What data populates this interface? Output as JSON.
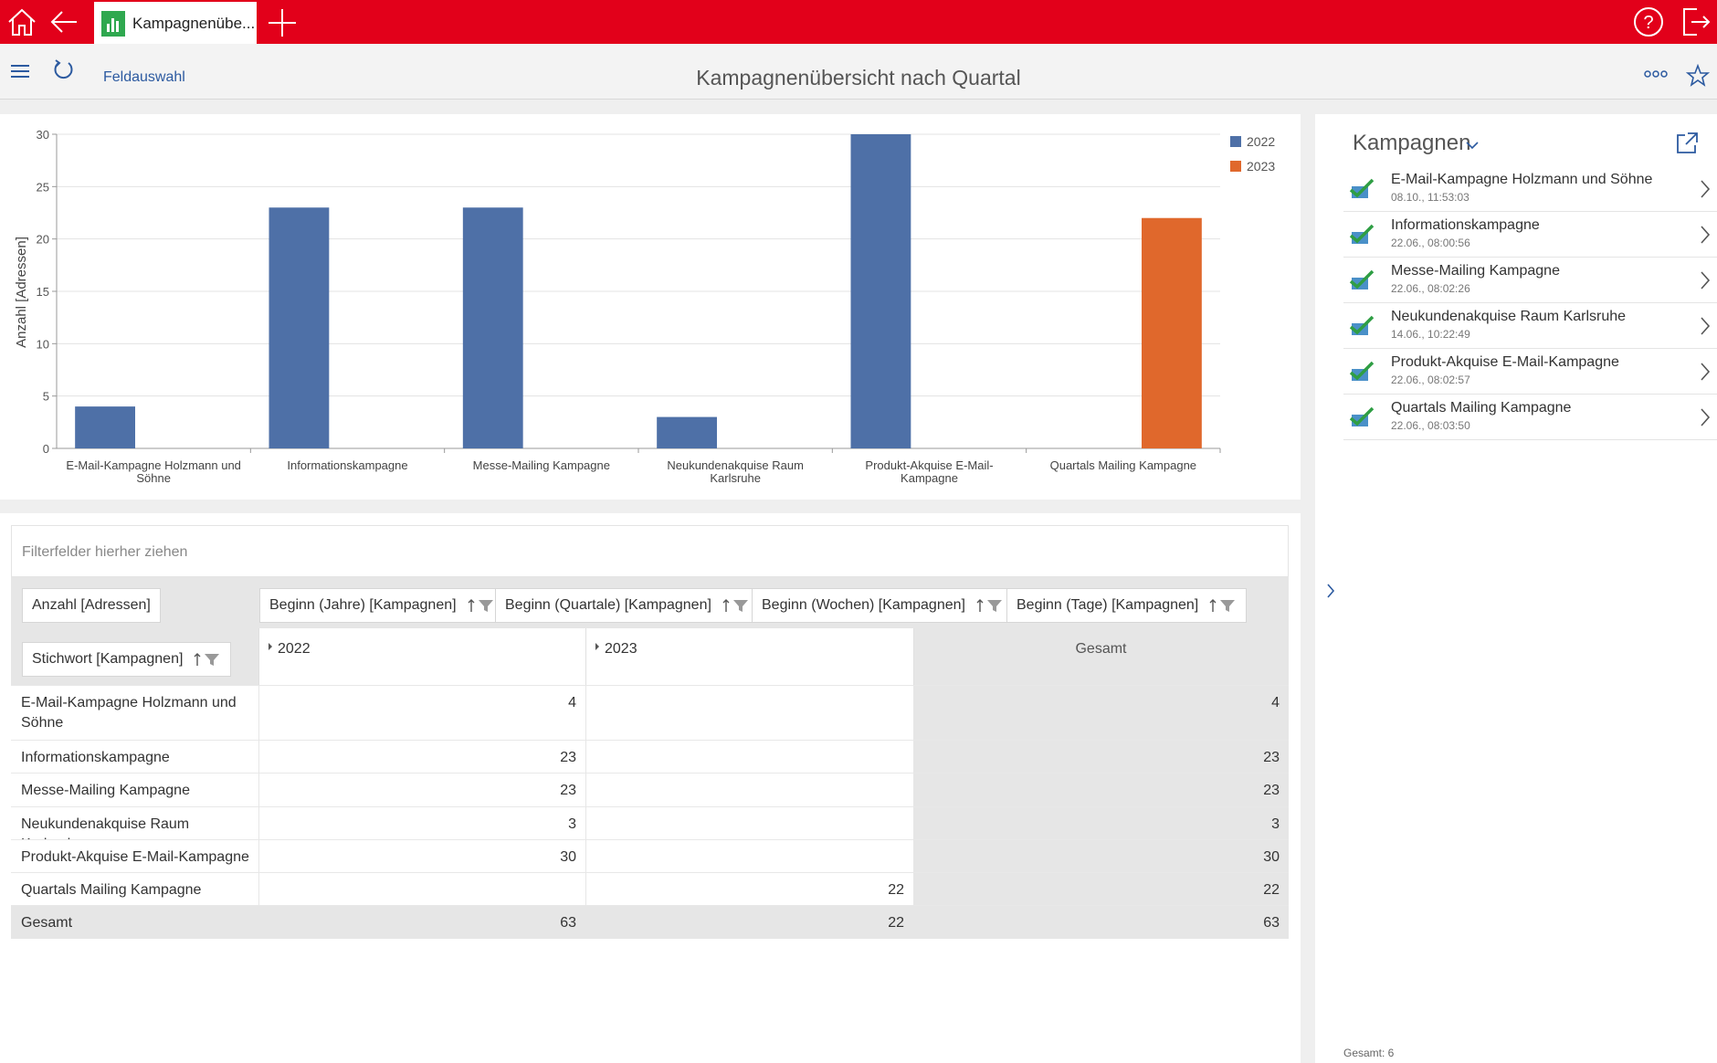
{
  "tab": {
    "title": "Kampagnenübe..."
  },
  "toolbar": {
    "field_selection": "Feldauswahl",
    "title": "Kampagnenübersicht nach Quartal"
  },
  "chart_data": {
    "type": "bar",
    "ylabel": "Anzahl [Adressen]",
    "categories": [
      "E-Mail-Kampagne Holzmann und Söhne",
      "Informationskampagne",
      "Messe-Mailing Kampagne",
      "Neukundenakquise Raum Karlsruhe",
      "Produkt-Akquise E-Mail-Kampagne",
      "Quartals Mailing Kampagne"
    ],
    "series": [
      {
        "name": "2022",
        "color": "#4e70a7",
        "values": [
          4,
          23,
          23,
          3,
          30,
          null
        ]
      },
      {
        "name": "2023",
        "color": "#e0682c",
        "values": [
          null,
          null,
          null,
          null,
          null,
          22
        ]
      }
    ],
    "ylim": [
      0,
      30
    ],
    "yticks": [
      0,
      5,
      10,
      15,
      20,
      25,
      30
    ],
    "grid": true,
    "legend": "top-right"
  },
  "pivot": {
    "filter_hint": "Filterfelder hierher ziehen",
    "data_field": "Anzahl [Adressen]",
    "column_fields": [
      "Beginn (Jahre) [Kampagnen]",
      "Beginn (Quartale) [Kampagnen]",
      "Beginn (Wochen) [Kampagnen]",
      "Beginn (Tage) [Kampagnen]"
    ],
    "row_field": "Stichwort [Kampagnen]",
    "columns": [
      "2022",
      "2023",
      "Gesamt"
    ],
    "rows": [
      {
        "label": "E-Mail-Kampagne Holzmann und Söhne",
        "values": [
          4,
          null,
          4
        ]
      },
      {
        "label": "Informationskampagne",
        "values": [
          23,
          null,
          23
        ]
      },
      {
        "label": "Messe-Mailing Kampagne",
        "values": [
          23,
          null,
          23
        ]
      },
      {
        "label": "Neukundenakquise Raum Karlsruhe",
        "values": [
          3,
          null,
          3
        ]
      },
      {
        "label": "Produkt-Akquise E-Mail-Kampagne",
        "values": [
          30,
          null,
          30
        ]
      },
      {
        "label": "Quartals Mailing Kampagne",
        "values": [
          null,
          22,
          22
        ]
      }
    ],
    "total": {
      "label": "Gesamt",
      "values": [
        63,
        22,
        63
      ]
    }
  },
  "side": {
    "title": "Kampagnen",
    "footer": "Gesamt: 6",
    "items": [
      {
        "name": "E-Mail-Kampagne Holzmann und Söhne",
        "time": "08.10., 11:53:03"
      },
      {
        "name": "Informationskampagne",
        "time": "22.06., 08:00:56"
      },
      {
        "name": "Messe-Mailing Kampagne",
        "time": "22.06., 08:02:26"
      },
      {
        "name": "Neukundenakquise Raum Karlsruhe",
        "time": "14.06., 10:22:49"
      },
      {
        "name": "Produkt-Akquise E-Mail-Kampagne",
        "time": "22.06., 08:02:57"
      },
      {
        "name": "Quartals Mailing Kampagne",
        "time": "22.06., 08:03:50"
      }
    ]
  }
}
